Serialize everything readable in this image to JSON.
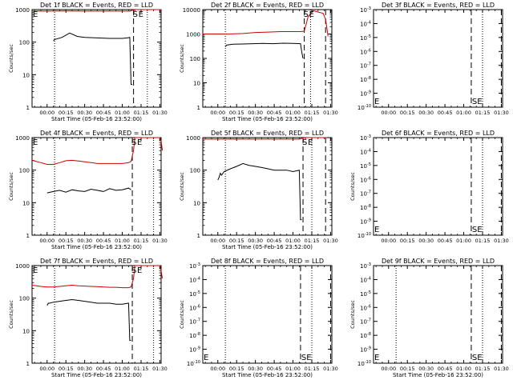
{
  "figure": {
    "background": "#ffffff",
    "axis_color": "#000000",
    "events_color": "#000000",
    "lld_color": "#cc0000"
  },
  "chart_data": [
    {
      "type": "line",
      "panel": "1f",
      "title": "Det 1f BLACK = Events, RED = LLD",
      "xlabel": "Start Time (05-Feb-16 23:52:00)",
      "ylabel": "Counts/sec",
      "scale": "log",
      "ylim": [
        1,
        1000
      ],
      "yticks": [
        "1",
        "10",
        "100",
        "1000"
      ],
      "xlim_minutes": [
        -12,
        91
      ],
      "xticks": [
        "00:00",
        "00:15",
        "00:30",
        "00:45",
        "01:00",
        "01:15",
        "01:30"
      ],
      "markers": [
        "E",
        "S",
        "E"
      ],
      "vlines_dotted_minutes": [
        6,
        80
      ],
      "vlines_dashed_minutes": [
        69,
        91
      ],
      "series": [
        {
          "name": "Events",
          "x": [
            -12,
            5,
            6,
            12,
            18,
            24,
            30,
            40,
            50,
            60,
            64,
            66,
            67,
            68
          ],
          "y": [
            null,
            110,
            120,
            140,
            190,
            150,
            140,
            135,
            130,
            130,
            135,
            140,
            5,
            5
          ]
        },
        {
          "name": "LLD",
          "x": [
            -12,
            0,
            15,
            30,
            45,
            60,
            66,
            68,
            70,
            90,
            91
          ],
          "y": [
            900,
            900,
            910,
            900,
            900,
            900,
            900,
            950,
            1000,
            1000,
            1000
          ]
        }
      ]
    },
    {
      "type": "line",
      "panel": "2f",
      "title": "Det 2f BLACK = Events, RED = LLD",
      "xlabel": "Start Time (05-Feb-16 23:52:00)",
      "ylabel": "Counts/sec",
      "scale": "log",
      "ylim": [
        1,
        10000
      ],
      "yticks": [
        "1",
        "10",
        "100",
        "1000",
        "10000"
      ],
      "xlim_minutes": [
        -12,
        91
      ],
      "xticks": [
        "00:00",
        "00:15",
        "00:30",
        "00:45",
        "01:00",
        "01:15",
        "01:30"
      ],
      "markers": [
        "S",
        "E"
      ],
      "vlines_dotted_minutes": [
        6,
        74
      ],
      "vlines_dashed_minutes": [
        69,
        86
      ],
      "series": [
        {
          "name": "Events",
          "x": [
            6,
            7,
            12,
            20,
            28,
            36,
            44,
            52,
            60,
            66,
            67,
            68
          ],
          "y": [
            300,
            350,
            380,
            390,
            400,
            410,
            400,
            420,
            410,
            400,
            180,
            100
          ]
        },
        {
          "name": "LLD",
          "x": [
            -12,
            0,
            10,
            20,
            30,
            40,
            50,
            60,
            66,
            69,
            72,
            76,
            80,
            84,
            86,
            88
          ],
          "y": [
            1000,
            1000,
            1010,
            1050,
            1150,
            1200,
            1250,
            1250,
            1250,
            1300,
            5000,
            9000,
            8000,
            7000,
            4000,
            800
          ]
        }
      ]
    },
    {
      "type": "line",
      "panel": "3f",
      "title": "Det 3f BLACK = Events, RED = LLD",
      "xlabel": "",
      "ylabel": "",
      "scale": "log",
      "ylim": [
        1e-10,
        0.001
      ],
      "yticks": [
        "10^-10",
        "10^-9",
        "10^-8",
        "10^-7",
        "10^-6",
        "10^-5",
        "10^-4",
        "10^-3"
      ],
      "xlim_minutes": [
        -12,
        91
      ],
      "xticks": [
        "00:00",
        "00:15",
        "00:30",
        "00:45",
        "01:00",
        "01:15",
        "01:30"
      ],
      "markers": [
        "E",
        "SE"
      ],
      "vlines_dotted_minutes": [
        75
      ],
      "vlines_dashed_minutes": [
        66,
        90
      ],
      "series": []
    },
    {
      "type": "line",
      "panel": "4f",
      "title": "Det 4f BLACK = Events, RED = LLD",
      "xlabel": "Start Time (05-Feb-16 23:52:00)",
      "ylabel": "Counts/sec",
      "scale": "log",
      "ylim": [
        1,
        1000
      ],
      "yticks": [
        "1",
        "10",
        "100",
        "1000"
      ],
      "xlim_minutes": [
        -12,
        91
      ],
      "xticks": [
        "00:00",
        "00:15",
        "00:30",
        "00:45",
        "01:00",
        "01:15",
        "01:30"
      ],
      "markers": [
        "E",
        "S",
        "E"
      ],
      "vlines_dotted_minutes": [
        6,
        85
      ],
      "vlines_dashed_minutes": [
        68,
        91
      ],
      "series": [
        {
          "name": "Events",
          "x": [
            0,
            5,
            10,
            15,
            20,
            25,
            30,
            35,
            40,
            45,
            50,
            55,
            60,
            65,
            67
          ],
          "y": [
            20,
            22,
            24,
            21,
            25,
            23,
            22,
            26,
            24,
            22,
            27,
            24,
            25,
            28,
            25
          ]
        },
        {
          "name": "LLD",
          "x": [
            -12,
            -5,
            0,
            5,
            10,
            15,
            20,
            25,
            30,
            35,
            40,
            45,
            50,
            55,
            60,
            65,
            67,
            69,
            70,
            90,
            91,
            92
          ],
          "y": [
            200,
            170,
            150,
            150,
            170,
            195,
            200,
            190,
            180,
            170,
            160,
            160,
            160,
            160,
            160,
            170,
            185,
            400,
            1000,
            1000,
            800,
            400
          ]
        }
      ]
    },
    {
      "type": "line",
      "panel": "5f",
      "title": "Det 5f BLACK = Events, RED = LLD",
      "xlabel": "Start Time (05-Feb-16 23:52:00)",
      "ylabel": "Counts/sec",
      "scale": "log",
      "ylim": [
        1,
        1000
      ],
      "yticks": [
        "1",
        "10",
        "100",
        "1000"
      ],
      "xlim_minutes": [
        -12,
        91
      ],
      "xticks": [
        "00:00",
        "00:15",
        "00:30",
        "00:45",
        "01:00",
        "01:15",
        "01:30"
      ],
      "markers": [
        "S",
        "E"
      ],
      "vlines_dotted_minutes": [
        6,
        75
      ],
      "vlines_dashed_minutes": [
        68,
        86
      ],
      "series": [
        {
          "name": "Events",
          "x": [
            0,
            1,
            2,
            3,
            5,
            10,
            15,
            20,
            25,
            30,
            35,
            40,
            45,
            50,
            55,
            60,
            65,
            66,
            67
          ],
          "y": [
            50,
            60,
            80,
            70,
            90,
            110,
            130,
            160,
            140,
            130,
            120,
            110,
            100,
            100,
            100,
            90,
            100,
            3,
            3
          ]
        },
        {
          "name": "LLD",
          "x": [
            -12,
            0,
            10,
            20,
            30,
            40,
            50,
            60,
            65,
            67,
            70,
            86,
            87
          ],
          "y": [
            900,
            900,
            910,
            900,
            900,
            900,
            900,
            900,
            900,
            950,
            1000,
            1000,
            1000
          ]
        }
      ]
    },
    {
      "type": "line",
      "panel": "6f",
      "title": "Det 6f BLACK = Events, RED = LLD",
      "xlabel": "",
      "ylabel": "Counts/sec",
      "scale": "log",
      "ylim": [
        1e-10,
        0.001
      ],
      "yticks": [
        "10^-10",
        "10^-9",
        "10^-8",
        "10^-7",
        "10^-6",
        "10^-5",
        "10^-4",
        "10^-3"
      ],
      "xlim_minutes": [
        -12,
        91
      ],
      "xticks": [
        "00:00",
        "00:15",
        "00:30",
        "00:45",
        "01:00",
        "01:15",
        "01:30"
      ],
      "markers": [
        "E",
        "SE"
      ],
      "vlines_dotted_minutes": [
        75
      ],
      "vlines_dashed_minutes": [
        66,
        90
      ],
      "series": []
    },
    {
      "type": "line",
      "panel": "7f",
      "title": "Det 7f BLACK = Events, RED = LLD",
      "xlabel": "Start Time (05-Feb-16 23:52:00)",
      "ylabel": "Counts/sec",
      "scale": "log",
      "ylim": [
        1,
        1000
      ],
      "yticks": [
        "1",
        "10",
        "100",
        "1000"
      ],
      "xlim_minutes": [
        -12,
        91
      ],
      "xticks": [
        "00:00",
        "00:15",
        "00:30",
        "00:45",
        "01:00",
        "01:15",
        "01:30"
      ],
      "markers": [
        "E",
        "S",
        "E"
      ],
      "vlines_dotted_minutes": [
        6,
        85
      ],
      "vlines_dashed_minutes": [
        68,
        91
      ],
      "series": [
        {
          "name": "Events",
          "x": [
            0,
            1,
            2,
            5,
            10,
            15,
            20,
            25,
            30,
            35,
            40,
            45,
            50,
            55,
            60,
            65,
            66,
            67
          ],
          "y": [
            60,
            70,
            70,
            75,
            80,
            85,
            90,
            85,
            80,
            75,
            70,
            70,
            70,
            65,
            65,
            70,
            5,
            5
          ]
        },
        {
          "name": "LLD",
          "x": [
            -12,
            -5,
            0,
            5,
            10,
            15,
            20,
            25,
            30,
            35,
            40,
            45,
            50,
            55,
            60,
            65,
            67,
            69,
            70,
            90,
            91,
            92
          ],
          "y": [
            250,
            230,
            220,
            220,
            230,
            240,
            250,
            240,
            235,
            230,
            225,
            220,
            215,
            215,
            210,
            210,
            220,
            400,
            1000,
            1000,
            700,
            400
          ]
        }
      ]
    },
    {
      "type": "line",
      "panel": "8f",
      "title": "Det 8f BLACK = Events, RED = LLD",
      "xlabel": "Start Time (05-Feb-16 23:52:00)",
      "ylabel": "Counts/sec",
      "scale": "log",
      "ylim": [
        1e-10,
        0.001
      ],
      "yticks": [
        "10^-10",
        "10^-9",
        "10^-8",
        "10^-7",
        "10^-6",
        "10^-5",
        "10^-4",
        "10^-3"
      ],
      "xlim_minutes": [
        -12,
        91
      ],
      "xticks": [
        "00:00",
        "00:15",
        "00:30",
        "00:45",
        "01:00",
        "01:15",
        "01:30"
      ],
      "markers": [
        "E",
        "SE"
      ],
      "vlines_dotted_minutes": [
        6,
        75
      ],
      "vlines_dashed_minutes": [
        66,
        90
      ],
      "series": []
    },
    {
      "type": "line",
      "panel": "9f",
      "title": "Det 9f BLACK = Events, RED = LLD",
      "xlabel": "Start Time (05-Feb-16 23:52:00)",
      "ylabel": "Counts/sec",
      "scale": "log",
      "ylim": [
        1e-10,
        0.001
      ],
      "yticks": [
        "10^-10",
        "10^-9",
        "10^-8",
        "10^-7",
        "10^-6",
        "10^-5",
        "10^-4",
        "10^-3"
      ],
      "xlim_minutes": [
        -12,
        91
      ],
      "xticks": [
        "00:00",
        "00:15",
        "00:30",
        "00:45",
        "01:00",
        "01:15",
        "01:30"
      ],
      "markers": [
        "E",
        "SE"
      ],
      "vlines_dotted_minutes": [
        6,
        75
      ],
      "vlines_dashed_minutes": [
        66,
        90
      ],
      "series": []
    }
  ]
}
